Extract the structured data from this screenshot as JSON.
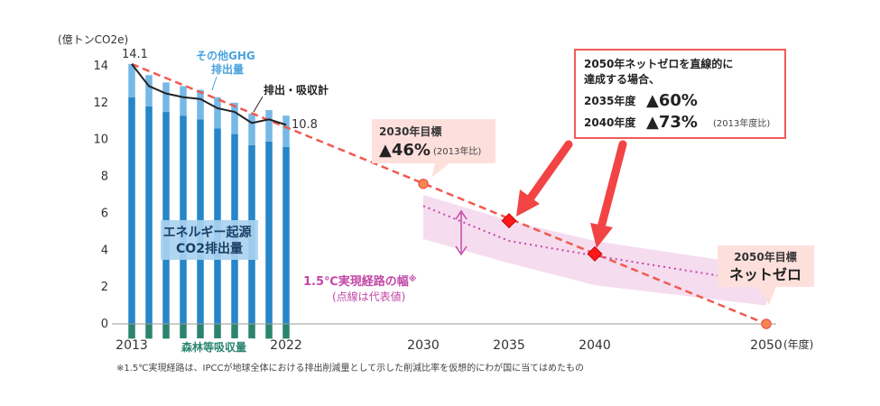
{
  "chart_data": {
    "type": "bar",
    "y_unit_label": "(億トンCO2e)",
    "x_unit_label": "(年度)",
    "ylim": [
      0,
      14
    ],
    "y_ticks": [
      0,
      2,
      4,
      6,
      8,
      10,
      12,
      14
    ],
    "x_tick_labels": [
      "2013",
      "2022",
      "2030",
      "2035",
      "2040",
      "2050"
    ],
    "x_range": [
      2013,
      2050
    ],
    "historical": [
      {
        "year": 2013,
        "energy_co2": 12.3,
        "other_ghg": 1.8,
        "forest": 0.8
      },
      {
        "year": 2014,
        "energy_co2": 11.8,
        "other_ghg": 1.7,
        "forest": 0.8
      },
      {
        "year": 2015,
        "energy_co2": 11.5,
        "other_ghg": 1.6,
        "forest": 0.8
      },
      {
        "year": 2016,
        "energy_co2": 11.3,
        "other_ghg": 1.6,
        "forest": 0.8
      },
      {
        "year": 2017,
        "energy_co2": 11.1,
        "other_ghg": 1.6,
        "forest": 0.8
      },
      {
        "year": 2018,
        "energy_co2": 10.6,
        "other_ghg": 1.7,
        "forest": 0.8
      },
      {
        "year": 2019,
        "energy_co2": 10.3,
        "other_ghg": 1.7,
        "forest": 0.8
      },
      {
        "year": 2020,
        "energy_co2": 9.7,
        "other_ghg": 1.7,
        "forest": 0.8
      },
      {
        "year": 2021,
        "energy_co2": 9.9,
        "other_ghg": 1.7,
        "forest": 0.8
      },
      {
        "year": 2022,
        "energy_co2": 9.6,
        "other_ghg": 1.7,
        "forest": 0.8
      }
    ],
    "net_emissions": [
      {
        "year": 2013,
        "value": 14.1
      },
      {
        "year": 2014,
        "value": 12.9
      },
      {
        "year": 2015,
        "value": 12.5
      },
      {
        "year": 2016,
        "value": 12.3
      },
      {
        "year": 2017,
        "value": 12.2
      },
      {
        "year": 2018,
        "value": 11.7
      },
      {
        "year": 2019,
        "value": 11.5
      },
      {
        "year": 2020,
        "value": 10.9
      },
      {
        "year": 2021,
        "value": 11.1
      },
      {
        "year": 2022,
        "value": 10.8
      }
    ],
    "straight_line": {
      "from": {
        "year": 2013,
        "value": 14.1
      },
      "to": {
        "year": 2050,
        "value": 0
      }
    },
    "target_2030": {
      "year": 2030,
      "value": 7.6
    },
    "target_2035": {
      "year": 2035,
      "value": 5.6
    },
    "target_2040": {
      "year": 2040,
      "value": 3.8
    },
    "target_2050": {
      "year": 2050,
      "value": 0
    },
    "pathway_band": [
      {
        "year": 2030,
        "low": 4.6,
        "high": 7.0
      },
      {
        "year": 2035,
        "low": 3.3,
        "high": 5.6
      },
      {
        "year": 2040,
        "low": 2.1,
        "high": 4.5
      },
      {
        "year": 2050,
        "low": 1.0,
        "high": 3.1
      }
    ],
    "pathway_representative": [
      {
        "year": 2030,
        "value": 6.4
      },
      {
        "year": 2035,
        "value": 4.5
      },
      {
        "year": 2040,
        "value": 3.7
      },
      {
        "year": 2050,
        "value": 2.2
      }
    ],
    "colors": {
      "energy": "#2586c9",
      "other": "#76b8e6",
      "forest": "#2a8470",
      "net": "#222222",
      "straight": "#f05a4f",
      "marker": "#ff0000",
      "band": "#f5dcef",
      "band_line": "#c248a8"
    }
  },
  "labels": {
    "start_value": "14.1",
    "end_value": "10.8",
    "other_ghg": "その他GHG\n排出量",
    "net": "排出・吸収計",
    "energy": "エネルギー起源\nCO2排出量",
    "forest": "森林等吸収量",
    "pathway_title": "1.5℃実現経路の幅",
    "pathway_mark": "※",
    "pathway_sub": "(点線は代表値)",
    "footnote": "※1.5℃実現経路は、IPCCが地球全体における排出削減量として示した削減比率を仮想的にわが国に当てはめたもの"
  },
  "callouts": {
    "c2030": {
      "title": "2030年目標",
      "value": "▲46%",
      "note": "(2013年比)"
    },
    "c2050": {
      "title": "2050年目標",
      "value": "ネットゼロ"
    },
    "straight": {
      "line1": "2050年ネットゼロを直線的に",
      "line2": "達成する場合、",
      "r1_year": "2035年度",
      "r1_value": "▲60%",
      "r2_year": "2040年度",
      "r2_value": "▲73%",
      "r2_note": "(2013年度比)"
    }
  }
}
